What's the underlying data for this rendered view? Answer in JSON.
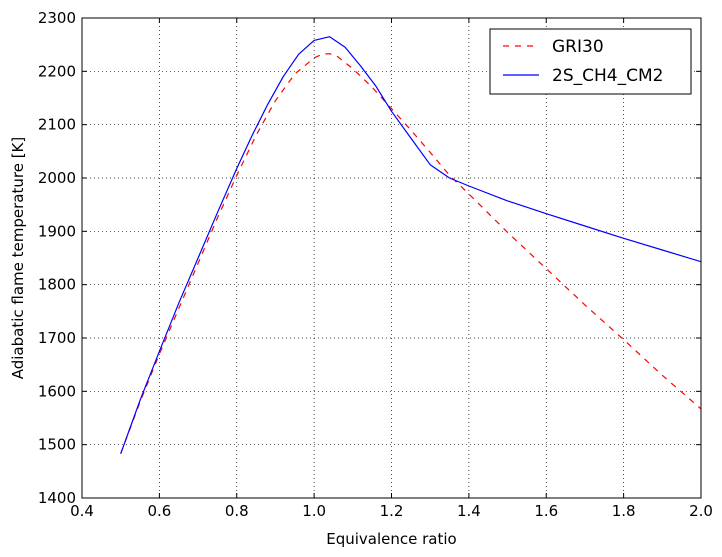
{
  "chart_data": {
    "type": "line",
    "title": "",
    "xlabel": "Equivalence ratio",
    "ylabel": "Adiabatic flame temperature [K]",
    "xlim": [
      0.4,
      2.0
    ],
    "ylim": [
      1400,
      2300
    ],
    "xticks": [
      "0.4",
      "0.6",
      "0.8",
      "1.0",
      "1.2",
      "1.4",
      "1.6",
      "1.8",
      "2.0"
    ],
    "yticks": [
      "1400",
      "1500",
      "1600",
      "1700",
      "1800",
      "1900",
      "2000",
      "2100",
      "2200",
      "2300"
    ],
    "grid": true,
    "legend_position": "top-right",
    "series": [
      {
        "name": "GRI30",
        "color": "#ff0000",
        "style": "dashed",
        "x": [
          0.5,
          0.55,
          0.6,
          0.65,
          0.7,
          0.75,
          0.8,
          0.85,
          0.9,
          0.95,
          1.0,
          1.02,
          1.04,
          1.06,
          1.1,
          1.15,
          1.2,
          1.25,
          1.3,
          1.35,
          1.4,
          1.5,
          1.6,
          1.7,
          1.8,
          1.9,
          2.0
        ],
        "y": [
          1483,
          1580,
          1670,
          1755,
          1840,
          1925,
          2005,
          2080,
          2145,
          2195,
          2225,
          2232,
          2233,
          2228,
          2205,
          2170,
          2130,
          2090,
          2048,
          2005,
          1970,
          1898,
          1830,
          1762,
          1697,
          1630,
          1567
        ]
      },
      {
        "name": "2S_CH4_CM2",
        "color": "#0000ff",
        "style": "solid",
        "x": [
          0.5,
          0.55,
          0.6,
          0.65,
          0.7,
          0.75,
          0.8,
          0.84,
          0.88,
          0.92,
          0.96,
          1.0,
          1.04,
          1.08,
          1.12,
          1.16,
          1.2,
          1.25,
          1.3,
          1.35,
          1.4,
          1.5,
          1.6,
          1.7,
          1.8,
          1.9,
          2.0
        ],
        "y": [
          1483,
          1583,
          1675,
          1765,
          1850,
          1935,
          2018,
          2080,
          2138,
          2190,
          2232,
          2258,
          2265,
          2245,
          2210,
          2172,
          2125,
          2075,
          2025,
          2000,
          1985,
          1957,
          1933,
          1910,
          1887,
          1865,
          1843
        ]
      }
    ]
  }
}
